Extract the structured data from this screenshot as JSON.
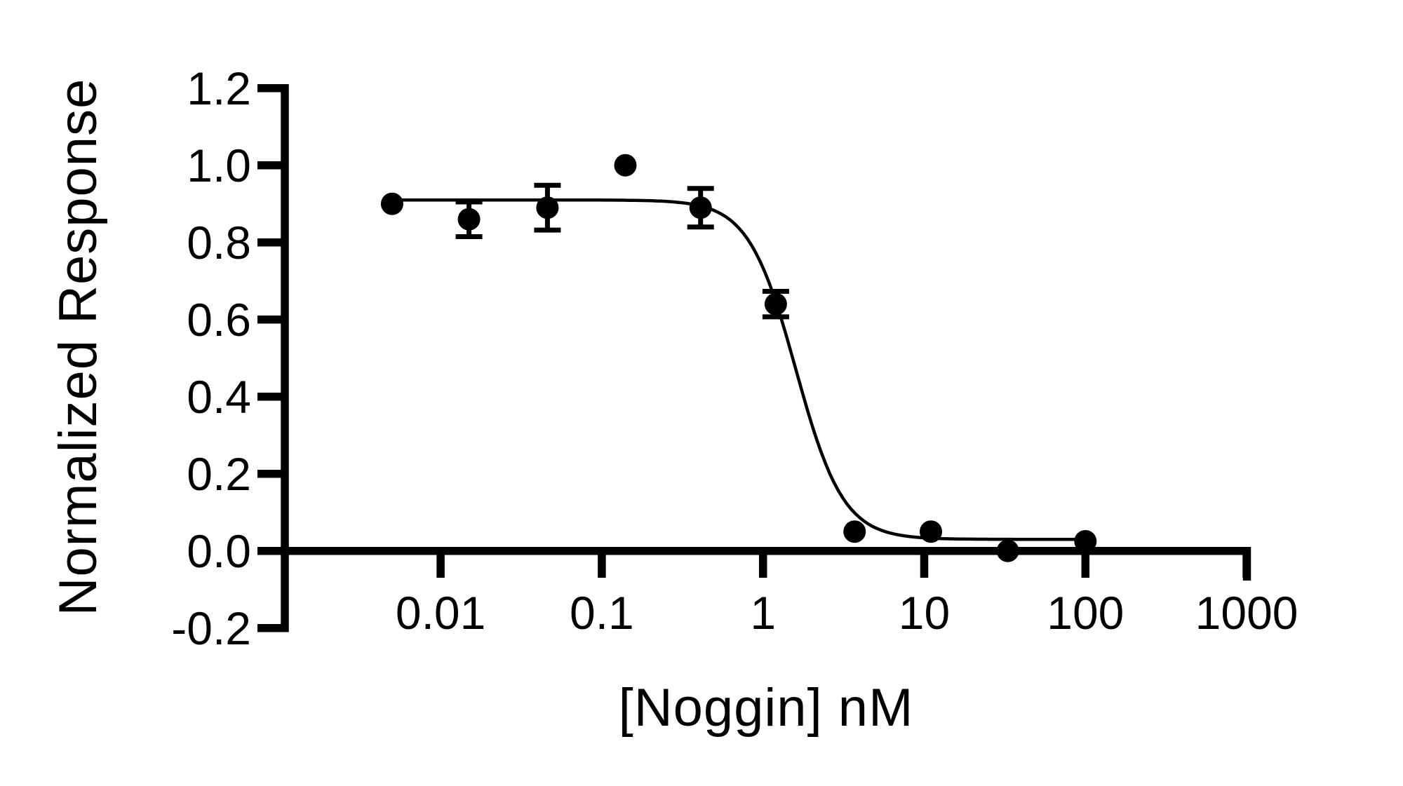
{
  "figure": {
    "background": "#ffffff",
    "ink_color": "#000000"
  },
  "chart_data": {
    "type": "scatter",
    "title": "",
    "xlabel": "[Noggin] nM",
    "ylabel": "Normalized Response",
    "x_scale": "log10",
    "xlim": [
      0.001,
      1000
    ],
    "ylim": [
      -0.2,
      1.2
    ],
    "x_ticks": [
      0.01,
      0.1,
      1,
      10,
      100,
      1000
    ],
    "x_tick_labels": [
      "0.01",
      "0.1",
      "1",
      "10",
      "100",
      "1000"
    ],
    "y_ticks": [
      1.2,
      1.0,
      0.8,
      0.6,
      0.4,
      0.2,
      0.0,
      -0.2
    ],
    "y_tick_labels": [
      "1.2",
      "1.0",
      "0.8",
      "0.6",
      "0.4",
      "0.2",
      "0.0",
      "-0.2"
    ],
    "grid": false,
    "legend": false,
    "marker": {
      "shape": "circle",
      "color": "#000000",
      "radius_px": 16
    },
    "points": [
      {
        "x": 0.005,
        "y": 0.9,
        "err": 0
      },
      {
        "x": 0.015,
        "y": 0.86,
        "err": 0.045
      },
      {
        "x": 0.046,
        "y": 0.89,
        "err": 0.058
      },
      {
        "x": 0.14,
        "y": 1.0,
        "err": 0
      },
      {
        "x": 0.41,
        "y": 0.89,
        "err": 0.05
      },
      {
        "x": 1.2,
        "y": 0.64,
        "err": 0.033
      },
      {
        "x": 3.7,
        "y": 0.05,
        "err": 0
      },
      {
        "x": 11,
        "y": 0.05,
        "err": 0
      },
      {
        "x": 33,
        "y": 0.0,
        "err": 0
      },
      {
        "x": 100,
        "y": 0.025,
        "err": 0
      }
    ],
    "fit_curve": {
      "model": "4PL-inhibition",
      "top": 0.91,
      "bottom": 0.03,
      "ic50_nM": 1.6,
      "hill": 2.95,
      "x_start": 0.005,
      "x_end": 100
    }
  }
}
